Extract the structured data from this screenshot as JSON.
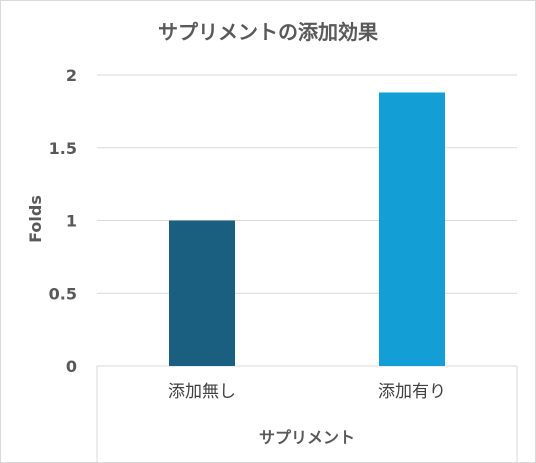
{
  "chart_data": {
    "type": "bar",
    "title": "サプリメントの添加効果",
    "xlabel": "サプリメント",
    "ylabel": "Folds",
    "categories": [
      "添加無し",
      "添加有り"
    ],
    "values": [
      1.0,
      1.88
    ],
    "colors": [
      "#1a5e80",
      "#139fd6"
    ],
    "ylim": [
      0,
      2
    ],
    "yticks": [
      "0",
      "0.5",
      "1",
      "1.5",
      "2"
    ],
    "grid": true,
    "legend": "none"
  }
}
